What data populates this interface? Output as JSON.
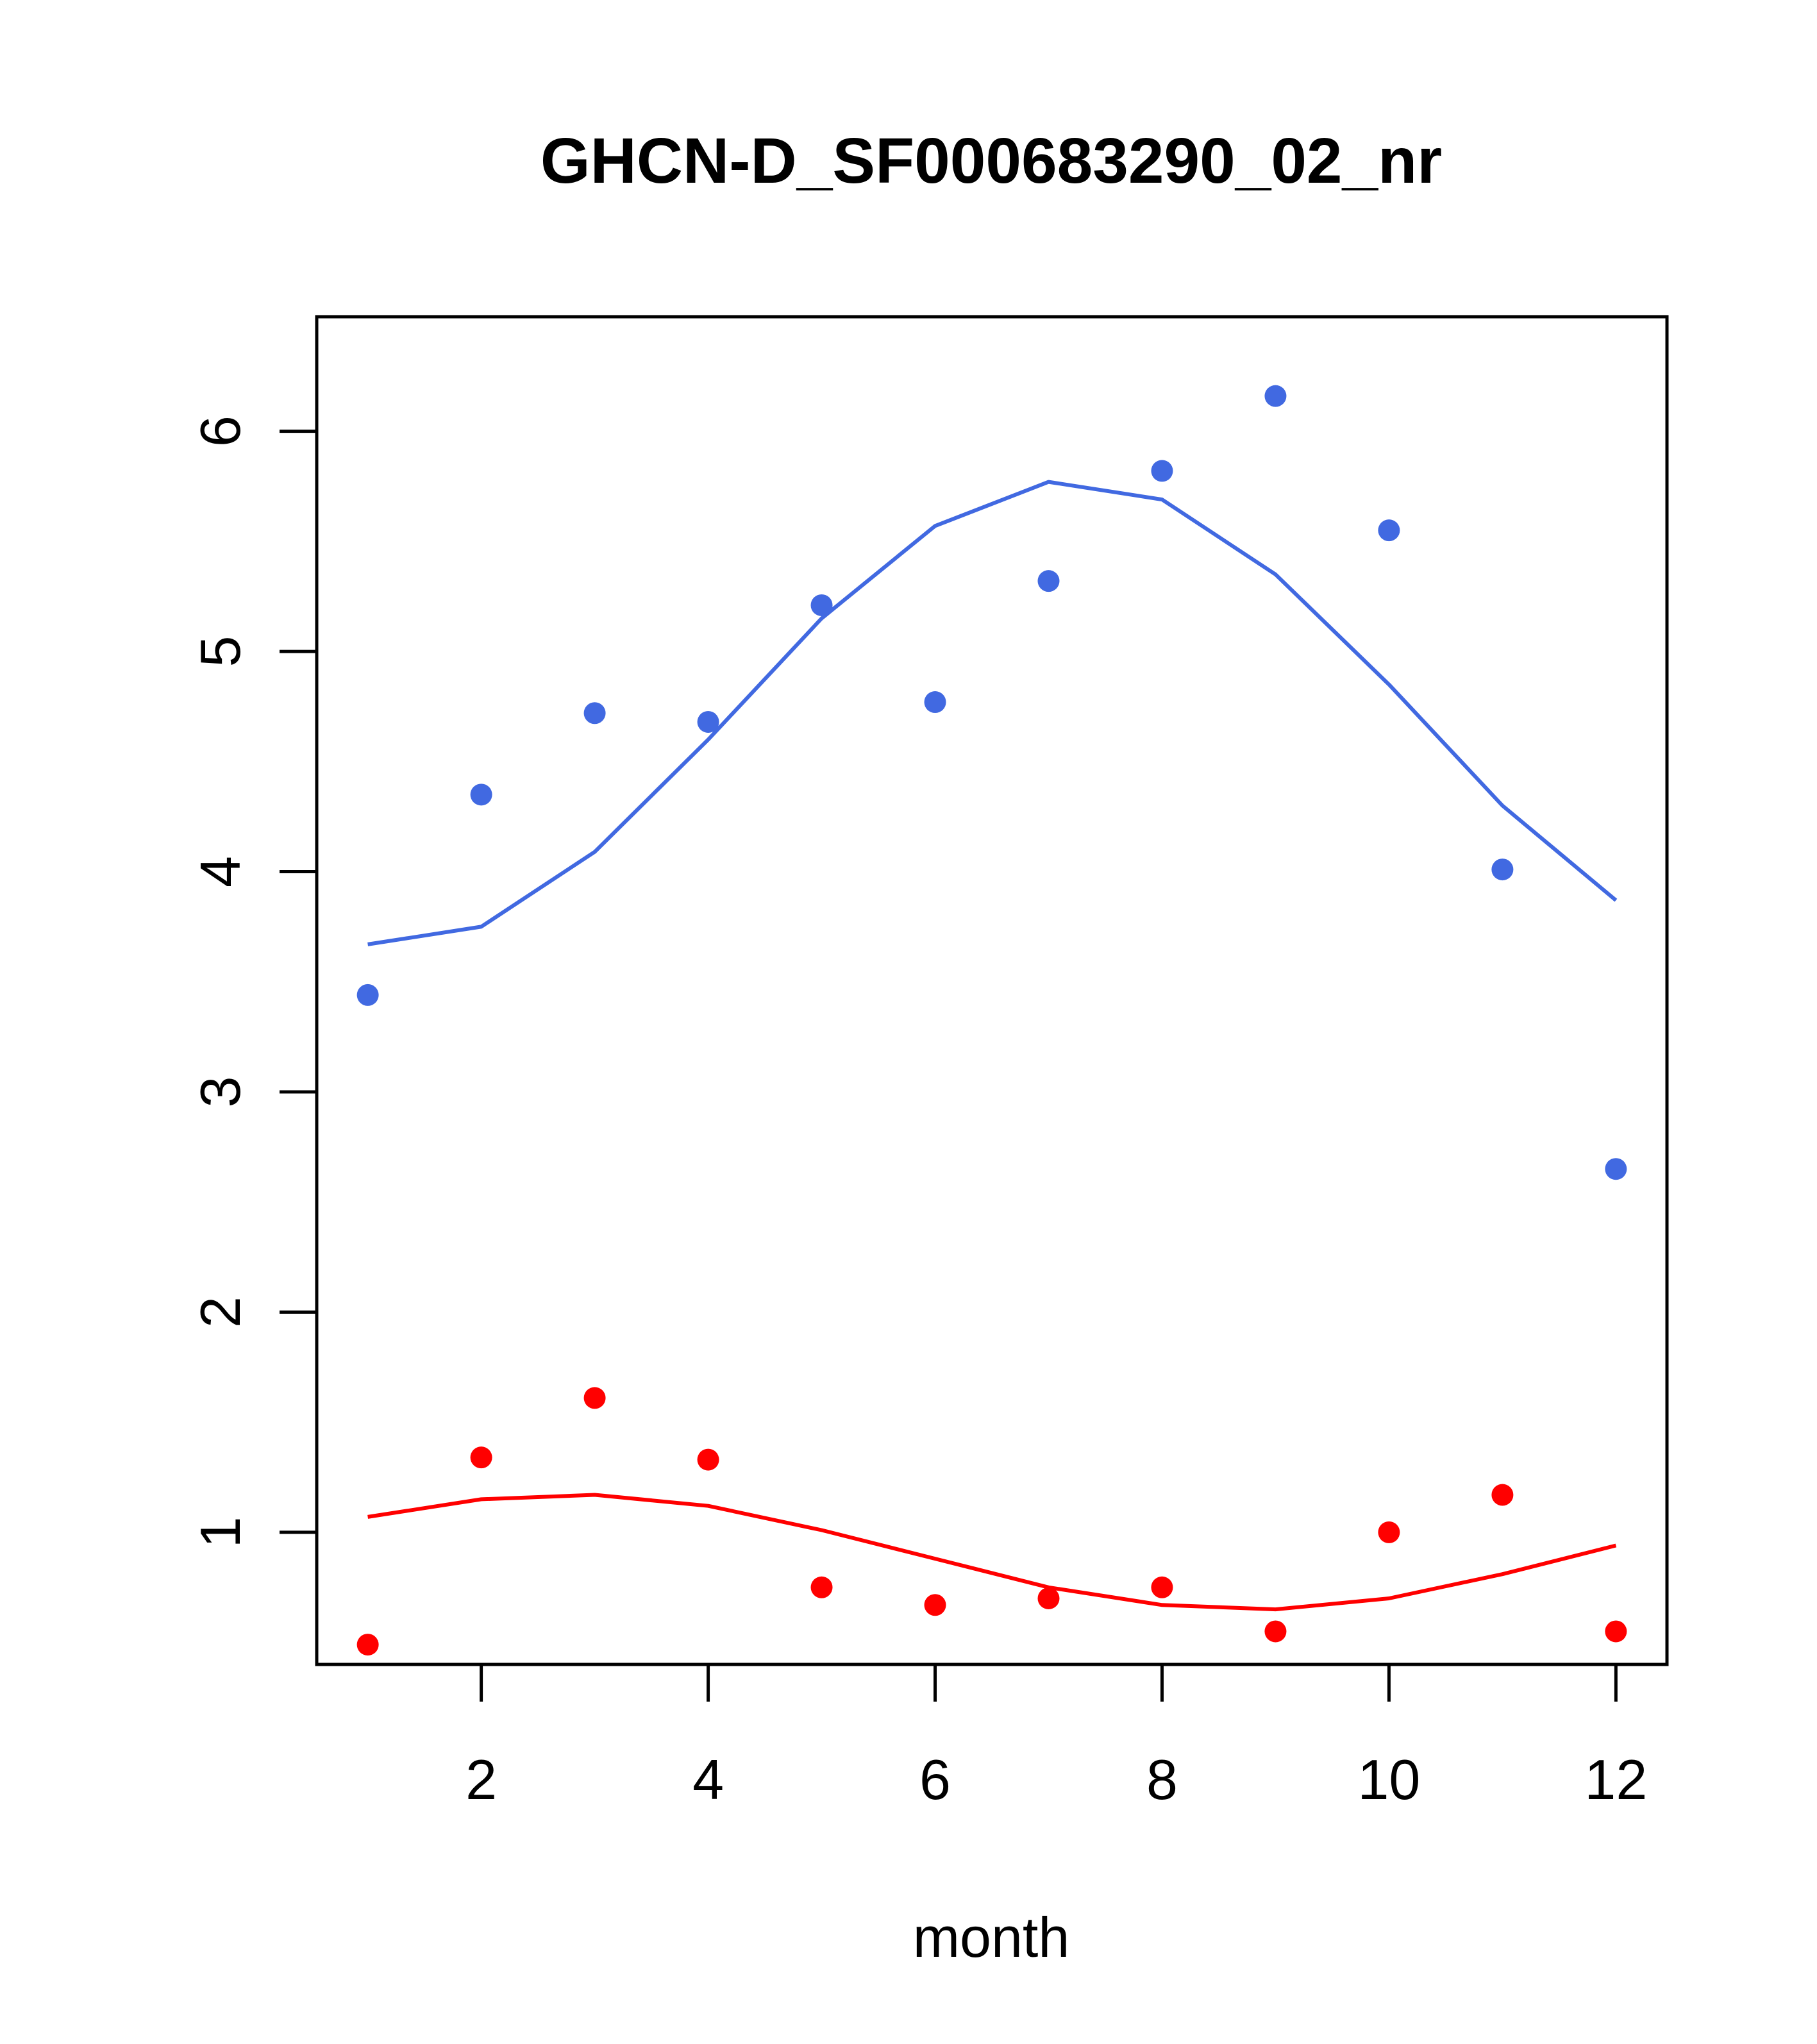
{
  "chart_data": {
    "type": "scatter",
    "title": "GHCN-D_SF000683290_02_nr",
    "xlabel": "month",
    "ylabel": "",
    "xlim": [
      0.55,
      12.45
    ],
    "ylim": [
      0.4,
      6.52
    ],
    "x_ticks": [
      2,
      4,
      6,
      8,
      10,
      12
    ],
    "y_ticks": [
      1,
      2,
      3,
      4,
      5,
      6
    ],
    "grid": false,
    "legend": "none",
    "series": [
      {
        "color": "#4169E1",
        "points": {
          "x": [
            1,
            2,
            3,
            4,
            5,
            6,
            7,
            8,
            9,
            10,
            11,
            12
          ],
          "y": [
            3.44,
            4.35,
            4.72,
            4.68,
            5.21,
            4.77,
            5.32,
            5.82,
            6.16,
            5.55,
            4.01,
            2.65
          ]
        },
        "line": {
          "x": [
            1,
            2,
            3,
            4,
            5,
            6,
            7,
            8,
            9,
            10,
            11,
            12
          ],
          "y": [
            3.67,
            3.75,
            4.09,
            4.6,
            5.15,
            5.57,
            5.77,
            5.69,
            5.35,
            4.85,
            4.3,
            3.87
          ]
        }
      },
      {
        "color": "#FF0000",
        "points": {
          "x": [
            1,
            2,
            3,
            4,
            5,
            6,
            7,
            8,
            9,
            10,
            11,
            12
          ],
          "y": [
            0.49,
            1.34,
            1.61,
            1.33,
            0.75,
            0.67,
            0.7,
            0.75,
            0.55,
            1.0,
            1.17,
            0.55
          ]
        },
        "line": {
          "x": [
            1,
            2,
            3,
            4,
            5,
            6,
            7,
            8,
            9,
            10,
            11,
            12
          ],
          "y": [
            1.07,
            1.15,
            1.17,
            1.12,
            1.01,
            0.88,
            0.75,
            0.67,
            0.65,
            0.7,
            0.81,
            0.94
          ]
        }
      }
    ]
  }
}
